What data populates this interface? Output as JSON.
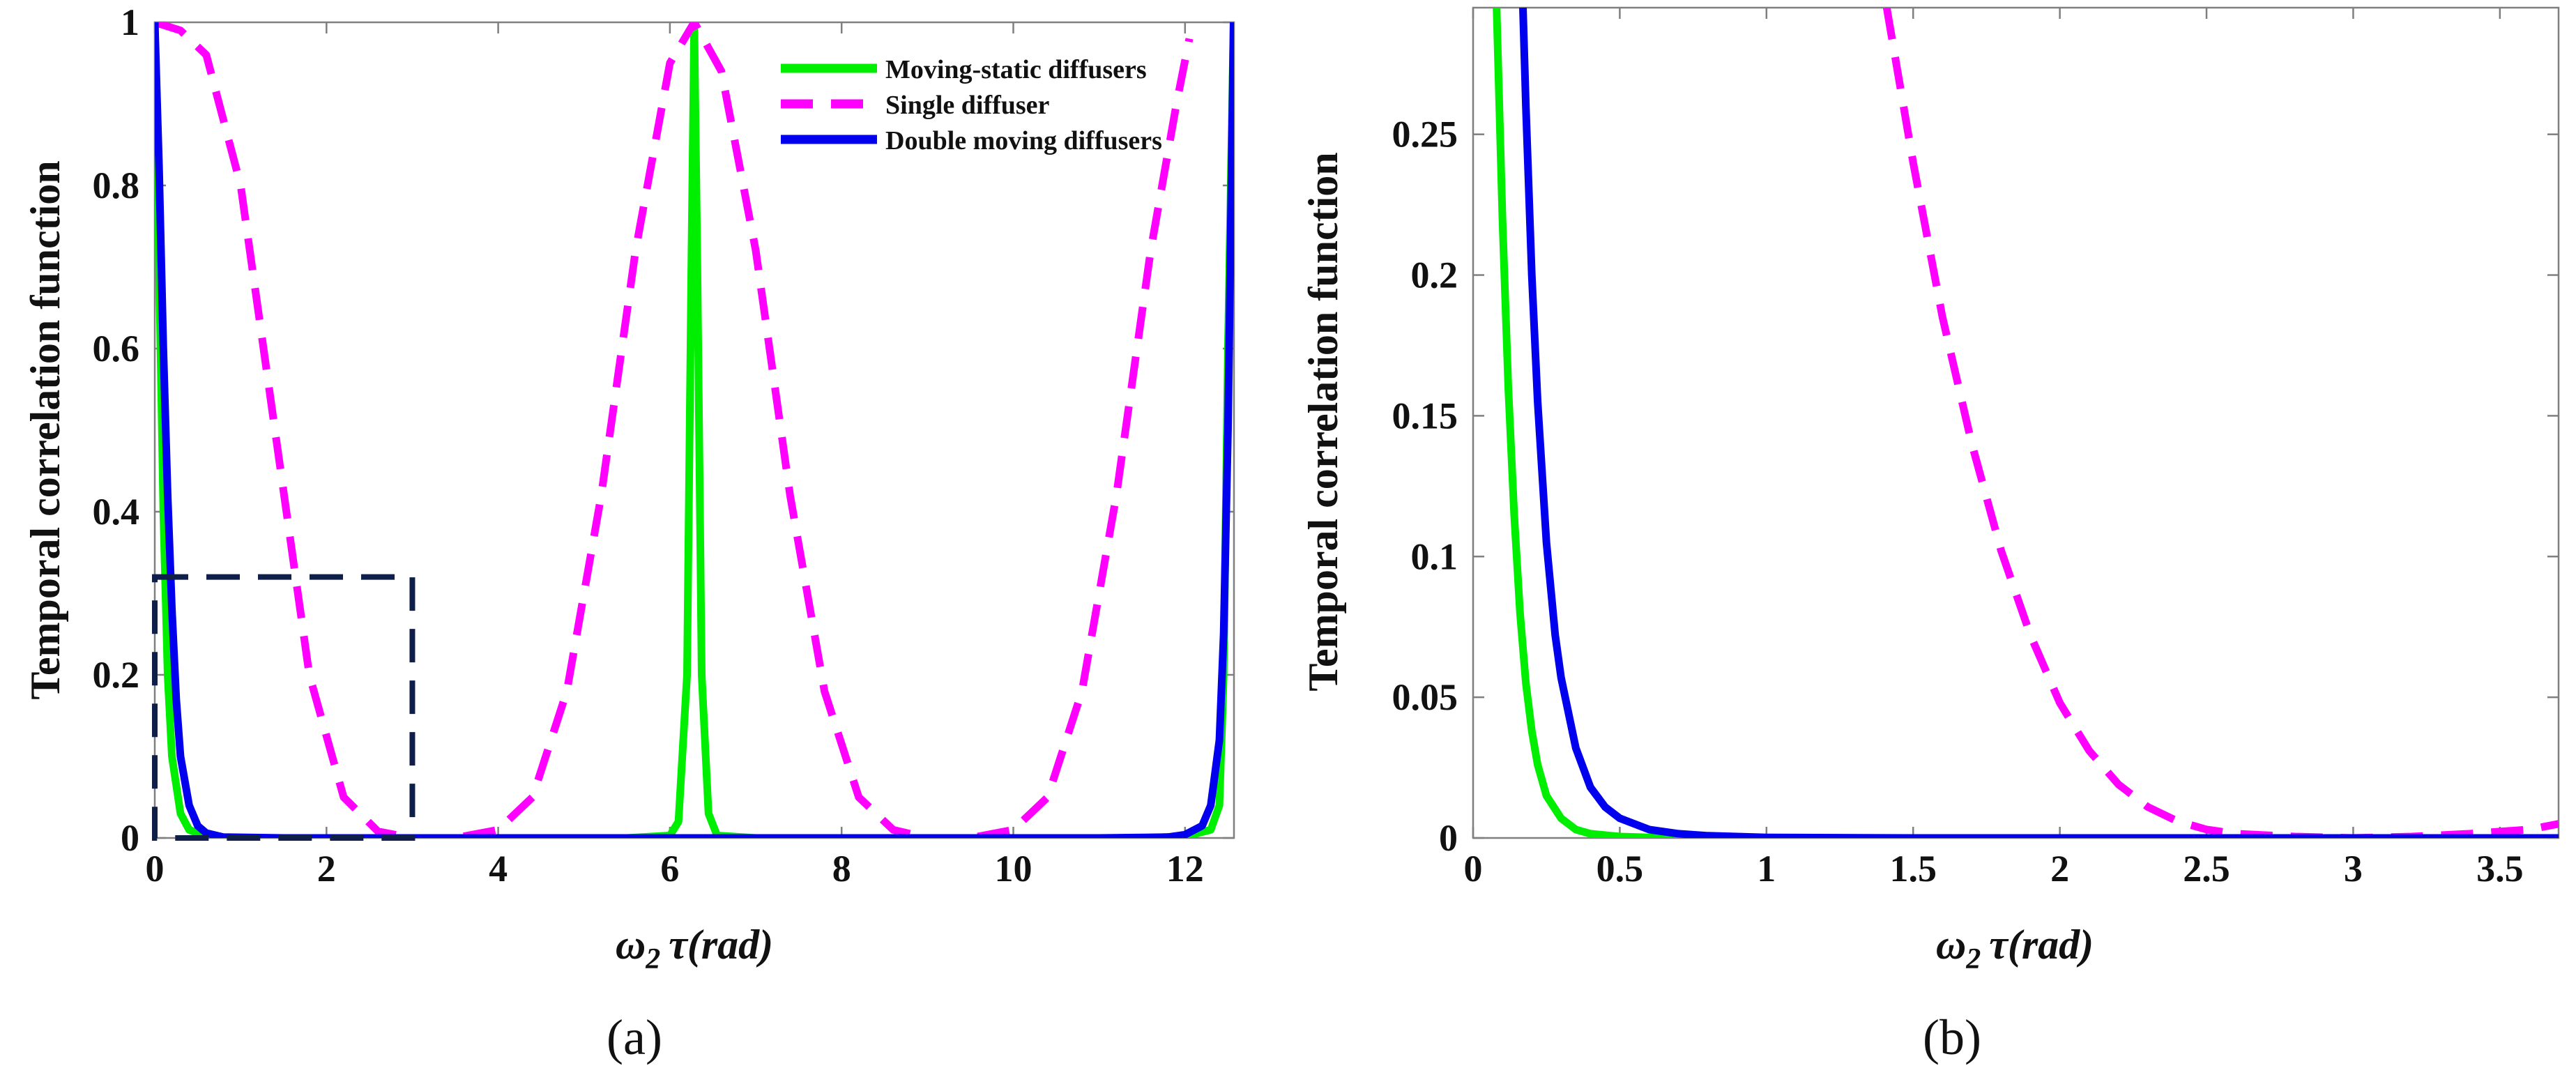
{
  "colors": {
    "moving_static": "#00ee00",
    "single": "#ff00ff",
    "double_moving": "#0000ee",
    "zoom_box": "#0f1f4a"
  },
  "chart_data": [
    {
      "type": "line",
      "panel": "(a)",
      "xlabel_symbol": "ω",
      "xlabel_sub": "2",
      "xlabel_rest": "τ(rad)",
      "ylabel": "Temporal correlation function",
      "xlim": [
        0,
        12.57
      ],
      "ylim": [
        0,
        1
      ],
      "xticks": [
        0,
        2,
        4,
        6,
        8,
        10,
        12
      ],
      "xtick_labels": [
        "0",
        "2",
        "4",
        "6",
        "8",
        "10",
        "12"
      ],
      "yticks": [
        0,
        0.2,
        0.4,
        0.6,
        0.8,
        1
      ],
      "ytick_labels": [
        "0",
        "0.2",
        "0.4",
        "0.6",
        "0.8",
        "1"
      ],
      "legend": {
        "position": "top-right",
        "entries": [
          {
            "key": "moving_static",
            "label": "Moving-static diffusers"
          },
          {
            "key": "single",
            "label": "Single diffuser"
          },
          {
            "key": "double_moving",
            "label": "Double moving diffusers"
          }
        ]
      },
      "zoom_box": {
        "x": [
          0,
          3
        ],
        "y": [
          0,
          0.32
        ]
      },
      "series": [
        {
          "key": "moving_static",
          "name": "Moving-static diffusers",
          "x": [
            0,
            0.05,
            0.1,
            0.15,
            0.2,
            0.3,
            0.4,
            0.6,
            1.0,
            3.0,
            5.5,
            6.0,
            6.1,
            6.2,
            6.25,
            6.283,
            6.32,
            6.37,
            6.45,
            6.55,
            7.0,
            9.0,
            11.5,
            12.0,
            12.3,
            12.4,
            12.45,
            12.5,
            12.566
          ],
          "values": [
            1.0,
            0.7,
            0.4,
            0.2,
            0.1,
            0.03,
            0.01,
            0.002,
            0.0,
            0.0,
            0.0,
            0.003,
            0.02,
            0.2,
            0.7,
            1.0,
            0.7,
            0.2,
            0.03,
            0.003,
            0.0,
            0.0,
            0.0,
            0.002,
            0.01,
            0.04,
            0.2,
            0.6,
            1.0
          ]
        },
        {
          "key": "single",
          "name": "Single diffuser",
          "x": [
            0,
            0.3,
            0.6,
            1.0,
            1.4,
            1.8,
            2.2,
            2.6,
            3.0,
            3.5,
            4.0,
            4.4,
            4.8,
            5.2,
            5.6,
            6.0,
            6.283,
            6.6,
            7.0,
            7.4,
            7.8,
            8.2,
            8.6,
            9.0,
            9.5,
            10.0,
            10.4,
            10.8,
            11.2,
            11.6,
            11.9,
            12.05
          ],
          "values": [
            1.0,
            0.99,
            0.96,
            0.8,
            0.5,
            0.2,
            0.05,
            0.008,
            0.0,
            0.0,
            0.01,
            0.05,
            0.18,
            0.42,
            0.72,
            0.95,
            1.0,
            0.94,
            0.72,
            0.42,
            0.18,
            0.05,
            0.01,
            0.0,
            0.0,
            0.01,
            0.05,
            0.18,
            0.42,
            0.72,
            0.9,
            0.98
          ]
        },
        {
          "key": "double_moving",
          "name": "Double moving diffusers",
          "x": [
            0,
            0.05,
            0.1,
            0.15,
            0.2,
            0.25,
            0.3,
            0.4,
            0.5,
            0.6,
            0.8,
            1.5,
            6.0,
            11.0,
            11.8,
            12.0,
            12.2,
            12.3,
            12.4,
            12.45,
            12.5,
            12.566
          ],
          "values": [
            1.0,
            0.82,
            0.6,
            0.42,
            0.28,
            0.17,
            0.1,
            0.04,
            0.015,
            0.006,
            0.001,
            0.0,
            0.0,
            0.0,
            0.001,
            0.004,
            0.015,
            0.04,
            0.12,
            0.25,
            0.5,
            1.0
          ]
        }
      ]
    },
    {
      "type": "line",
      "panel": "(b)",
      "xlabel_symbol": "ω",
      "xlabel_sub": "2",
      "xlabel_rest": "τ(rad)",
      "ylabel": "Temporal correlation function",
      "xlim": [
        0,
        3.7
      ],
      "ylim": [
        0,
        0.295
      ],
      "xticks": [
        0,
        0.5,
        1,
        1.5,
        2,
        2.5,
        3,
        3.5
      ],
      "xtick_labels": [
        "0",
        "0.5",
        "1",
        "1.5",
        "2",
        "2.5",
        "3",
        "3.5"
      ],
      "yticks": [
        0,
        0.05,
        0.1,
        0.15,
        0.2,
        0.25
      ],
      "ytick_labels": [
        "0",
        "0.05",
        "0.1",
        "0.15",
        "0.2",
        "0.25"
      ],
      "series": [
        {
          "key": "moving_static",
          "name": "Moving-static diffusers",
          "x": [
            0.08,
            0.1,
            0.12,
            0.14,
            0.16,
            0.18,
            0.2,
            0.22,
            0.25,
            0.3,
            0.35,
            0.4,
            0.5,
            0.6,
            0.8,
            1.2,
            2.0,
            3.7
          ],
          "values": [
            0.295,
            0.22,
            0.16,
            0.115,
            0.08,
            0.055,
            0.038,
            0.026,
            0.015,
            0.007,
            0.003,
            0.0015,
            0.0005,
            0.0002,
            0.0,
            0.0,
            0.0,
            0.0
          ]
        },
        {
          "key": "single",
          "name": "Single diffuser",
          "x": [
            1.41,
            1.5,
            1.6,
            1.7,
            1.8,
            1.9,
            2.0,
            2.1,
            2.2,
            2.3,
            2.4,
            2.5,
            2.6,
            2.8,
            3.0,
            3.2,
            3.4,
            3.6,
            3.7
          ],
          "values": [
            0.295,
            0.24,
            0.185,
            0.14,
            0.102,
            0.072,
            0.048,
            0.031,
            0.019,
            0.011,
            0.006,
            0.003,
            0.0015,
            0.0005,
            0.0,
            0.0005,
            0.0015,
            0.003,
            0.005
          ]
        },
        {
          "key": "double_moving",
          "name": "Double moving diffusers",
          "x": [
            0.17,
            0.18,
            0.2,
            0.22,
            0.25,
            0.28,
            0.3,
            0.35,
            0.4,
            0.45,
            0.5,
            0.6,
            0.7,
            0.8,
            1.0,
            1.5,
            2.5,
            3.7
          ],
          "values": [
            0.295,
            0.26,
            0.2,
            0.155,
            0.105,
            0.072,
            0.057,
            0.032,
            0.018,
            0.011,
            0.007,
            0.003,
            0.0015,
            0.0008,
            0.0002,
            0.0,
            0.0,
            0.0
          ]
        }
      ]
    }
  ]
}
